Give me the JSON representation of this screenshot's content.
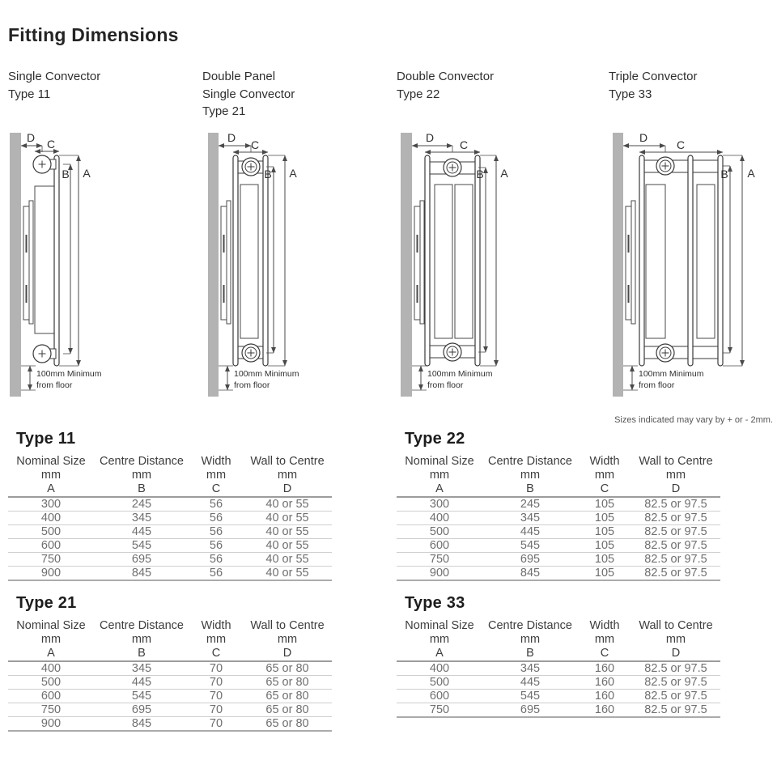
{
  "page_title": "Fitting Dimensions",
  "variance_note": "Sizes indicated may vary by + or - 2mm.",
  "diagram_headings": [
    {
      "lines": [
        "Single Convector",
        "Type 11"
      ]
    },
    {
      "lines": [
        "Double Panel",
        "Single Convector",
        "Type 21"
      ]
    },
    {
      "lines": [
        "Double Convector",
        "Type 22"
      ]
    },
    {
      "lines": [
        "Triple Convector",
        "Type 33"
      ]
    }
  ],
  "dimension_labels": {
    "a": "A",
    "b": "B",
    "c": "C",
    "d": "D"
  },
  "floor_note_lines": [
    "100mm Minimum",
    "from floor"
  ],
  "table_column_headers": {
    "titles": [
      "Nominal Size",
      "Centre Distance",
      "Width",
      "Wall to Centre"
    ],
    "units": [
      "mm",
      "mm",
      "mm",
      "mm"
    ],
    "letters": [
      "A",
      "B",
      "C",
      "D"
    ]
  },
  "tables": [
    {
      "heading": "Type 11",
      "rows": [
        [
          "300",
          "245",
          "56",
          "40 or 55"
        ],
        [
          "400",
          "345",
          "56",
          "40 or 55"
        ],
        [
          "500",
          "445",
          "56",
          "40 or 55"
        ],
        [
          "600",
          "545",
          "56",
          "40 or 55"
        ],
        [
          "750",
          "695",
          "56",
          "40 or 55"
        ],
        [
          "900",
          "845",
          "56",
          "40 or 55"
        ]
      ]
    },
    {
      "heading": "Type 22",
      "rows": [
        [
          "300",
          "245",
          "105",
          "82.5 or 97.5"
        ],
        [
          "400",
          "345",
          "105",
          "82.5 or 97.5"
        ],
        [
          "500",
          "445",
          "105",
          "82.5 or 97.5"
        ],
        [
          "600",
          "545",
          "105",
          "82.5 or 97.5"
        ],
        [
          "750",
          "695",
          "105",
          "82.5 or 97.5"
        ],
        [
          "900",
          "845",
          "105",
          "82.5 or 97.5"
        ]
      ]
    },
    {
      "heading": "Type 21",
      "rows": [
        [
          "400",
          "345",
          "70",
          "65 or 80"
        ],
        [
          "500",
          "445",
          "70",
          "65 or 80"
        ],
        [
          "600",
          "545",
          "70",
          "65 or 80"
        ],
        [
          "750",
          "695",
          "70",
          "65 or 80"
        ],
        [
          "900",
          "845",
          "70",
          "65 or 80"
        ]
      ]
    },
    {
      "heading": "Type 33",
      "rows": [
        [
          "400",
          "345",
          "160",
          "82.5 or 97.5"
        ],
        [
          "500",
          "445",
          "160",
          "82.5 or 97.5"
        ],
        [
          "600",
          "545",
          "160",
          "82.5 or 97.5"
        ],
        [
          "750",
          "695",
          "160",
          "82.5 or 97.5"
        ]
      ]
    }
  ]
}
